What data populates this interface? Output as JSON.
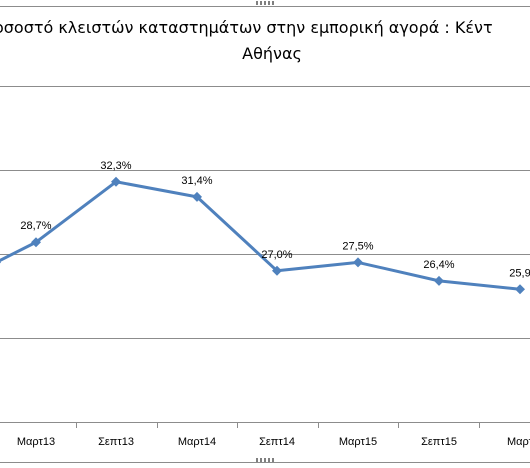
{
  "chart_data": {
    "type": "line",
    "title_line1": "οσοστό κλειστών καταστημάτων στην εμπορική αγορά : Κέντ",
    "title_line2": "Αθήνας",
    "categories": [
      "",
      "Μαρτ13",
      "Σεπτ13",
      "Μαρτ14",
      "Σεπτ14",
      "Μαρτ15",
      "Σεπτ15",
      "Μαρτ"
    ],
    "series": [
      {
        "values": [
          27.5,
          28.7,
          32.3,
          31.4,
          27.0,
          27.5,
          26.4,
          25.9
        ],
        "labels": [
          "",
          "28,7%",
          "32,3%",
          "31,4%",
          "27,0%",
          "27,5%",
          "26,4%",
          "25,9"
        ],
        "color": "#4f81bd"
      }
    ],
    "ylim": [
      22,
      37
    ],
    "gridlines": [
      23,
      28,
      33
    ],
    "grid": true,
    "legend": "none"
  }
}
